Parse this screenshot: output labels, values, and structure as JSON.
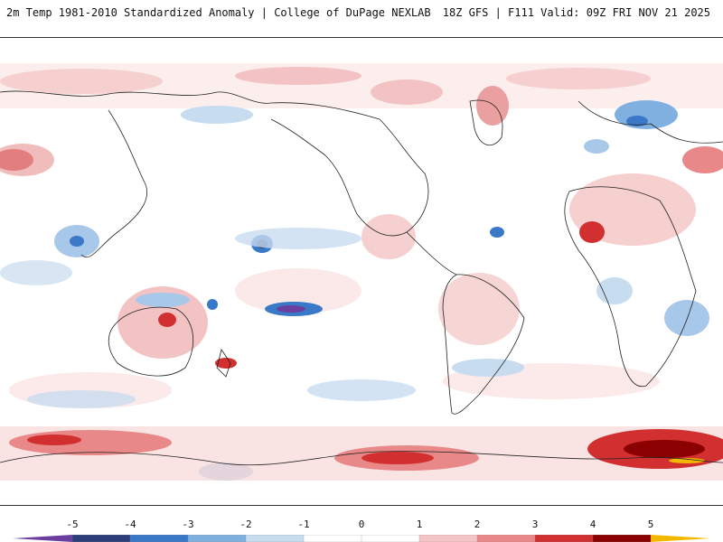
{
  "header": {
    "title_left": "2m Temp 1981-2010 Standardized Anomaly | College of DuPage NEXLAB",
    "title_right": "18Z GFS | F111 Valid: 09Z FRI NOV 21 2025"
  },
  "legend": {
    "ticks": [
      "-5",
      "-4",
      "-3",
      "-2",
      "-1",
      "0",
      "1",
      "2",
      "3",
      "4",
      "5"
    ],
    "colors": [
      "#6a3fa0",
      "#2c3f7a",
      "#3a78c8",
      "#7fb0e0",
      "#c8dcf0",
      "#ffffff",
      "#ffffff",
      "#f4c4c4",
      "#e88888",
      "#d23030",
      "#8b0000",
      "#f2b800"
    ]
  },
  "map": {
    "projection": "Pacific-centered equirectangular",
    "field": "2m temperature standardized anomaly"
  }
}
